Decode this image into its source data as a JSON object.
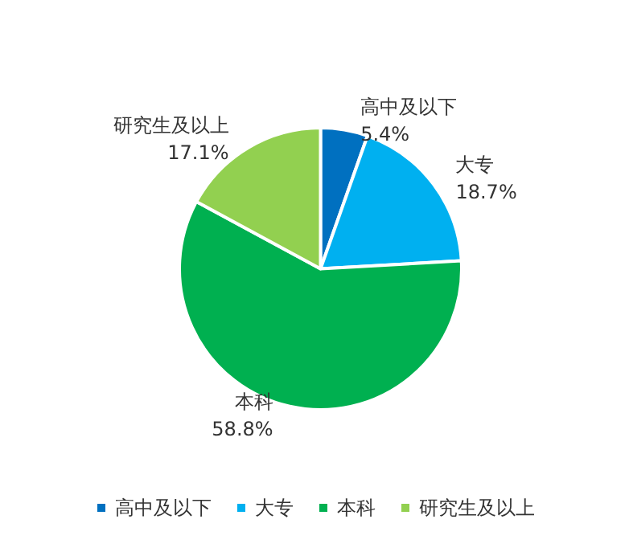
{
  "chart_data": {
    "type": "pie",
    "categories": [
      "高中及以下",
      "大专",
      "本科",
      "研究生及以上"
    ],
    "values": [
      5.4,
      18.7,
      58.8,
      17.1
    ],
    "value_labels": [
      "5.4%",
      "18.7%",
      "58.8%",
      "17.1%"
    ],
    "colors": [
      "#0070c0",
      "#00b0f0",
      "#00b050",
      "#92d050"
    ],
    "legend": "bottom"
  }
}
